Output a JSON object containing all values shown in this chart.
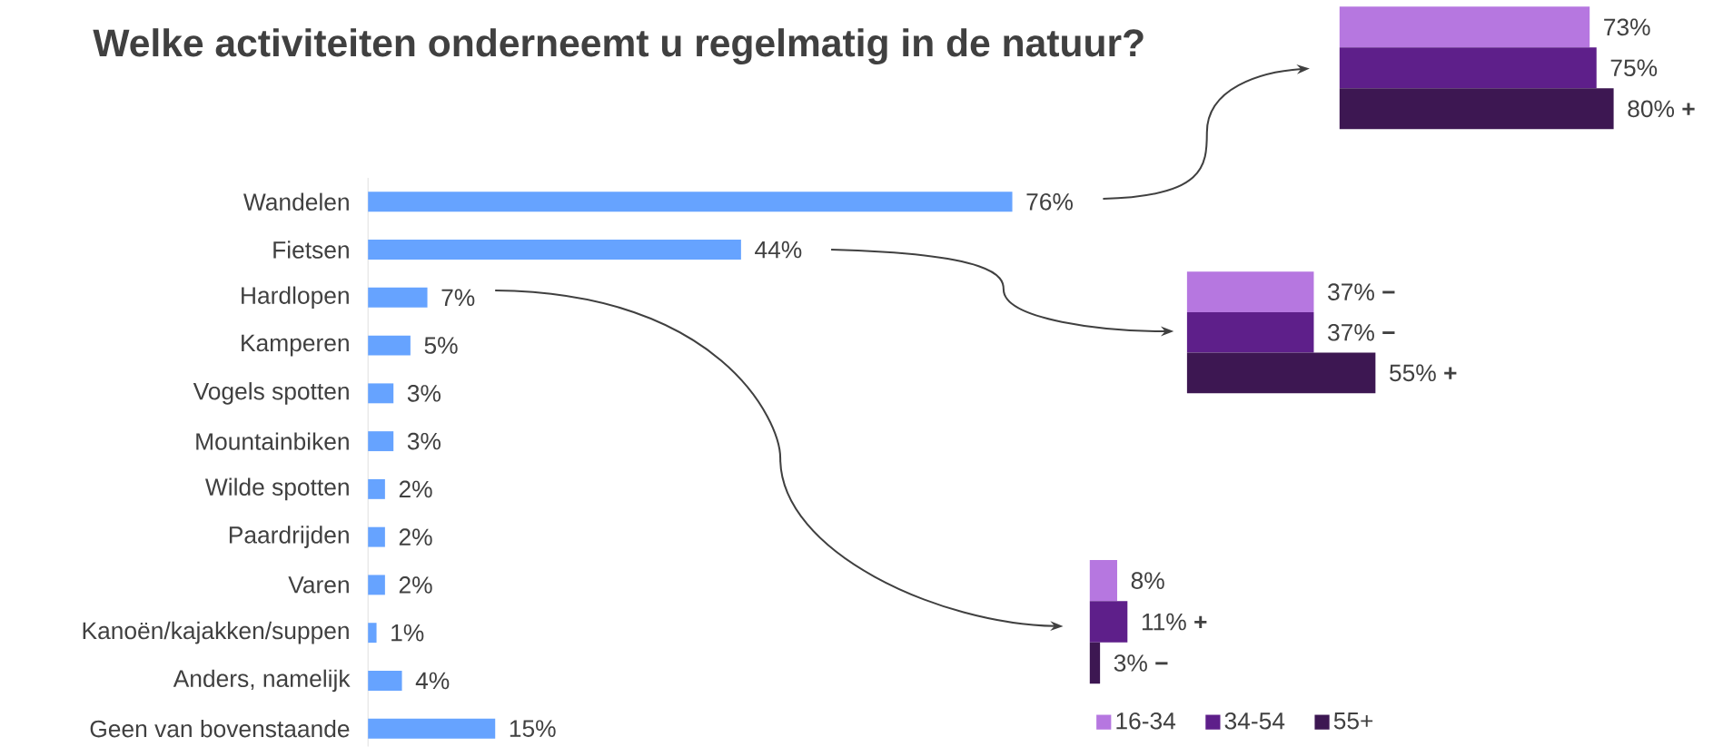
{
  "chart_data": [
    {
      "type": "bar",
      "orientation": "horizontal",
      "title": "Welke activiteiten onderneemt u regelmatig in de natuur?",
      "categories": [
        "Wandelen",
        "Fietsen",
        "Hardlopen",
        "Kamperen",
        "Vogels spotten",
        "Mountainbiken",
        "Wilde spotten",
        "Paardrijden",
        "Varen",
        "Kanoën/kajakken/suppen",
        "Anders, namelijk",
        "Geen van bovenstaande"
      ],
      "series": [
        {
          "color": "#66a3ff",
          "values": [
            76,
            44,
            7,
            5,
            3,
            3,
            2,
            2,
            2,
            1,
            4,
            15
          ],
          "value_labels": [
            "76%",
            "44%",
            "7%",
            "5%",
            "3%",
            "3%",
            "2%",
            "2%",
            "2%",
            "1%",
            "4%",
            "15%"
          ]
        }
      ],
      "tick_labels": "y"
    },
    {
      "type": "bar",
      "orientation": "horizontal",
      "categories": [
        null
      ],
      "tick_labels": false,
      "series": [
        {
          "color": "#b677e0",
          "values": [
            73
          ],
          "value_labels": [
            "73%"
          ]
        },
        {
          "color": "#5e1f8a",
          "values": [
            75
          ],
          "value_labels": [
            "75%"
          ]
        },
        {
          "color": "#3d1752",
          "values": [
            80
          ],
          "value_labels": [
            "80% **+**"
          ]
        }
      ]
    },
    {
      "type": "bar",
      "orientation": "horizontal",
      "categories": [
        null
      ],
      "tick_labels": false,
      "series": [
        {
          "color": "#b677e0",
          "values": [
            37
          ],
          "value_labels": [
            "37% **−**"
          ]
        },
        {
          "color": "#5e1f8a",
          "values": [
            37
          ],
          "value_labels": [
            "37% **−**"
          ]
        },
        {
          "color": "#3d1752",
          "values": [
            55
          ],
          "value_labels": [
            "55% **+**"
          ]
        }
      ]
    },
    {
      "type": "bar",
      "orientation": "horizontal",
      "categories": [
        null
      ],
      "tick_labels": false,
      "legend": "bottom",
      "series": [
        {
          "name": "16-34",
          "color": "#b677e0",
          "values": [
            8
          ],
          "value_labels": [
            "8%"
          ]
        },
        {
          "name": "34-54",
          "color": "#5e1f8a",
          "values": [
            11
          ],
          "value_labels": [
            "11% **+**"
          ]
        },
        {
          "name": "55+",
          "color": "#3d1752",
          "values": [
            3
          ],
          "value_labels": [
            "3% **−**"
          ]
        }
      ]
    }
  ]
}
